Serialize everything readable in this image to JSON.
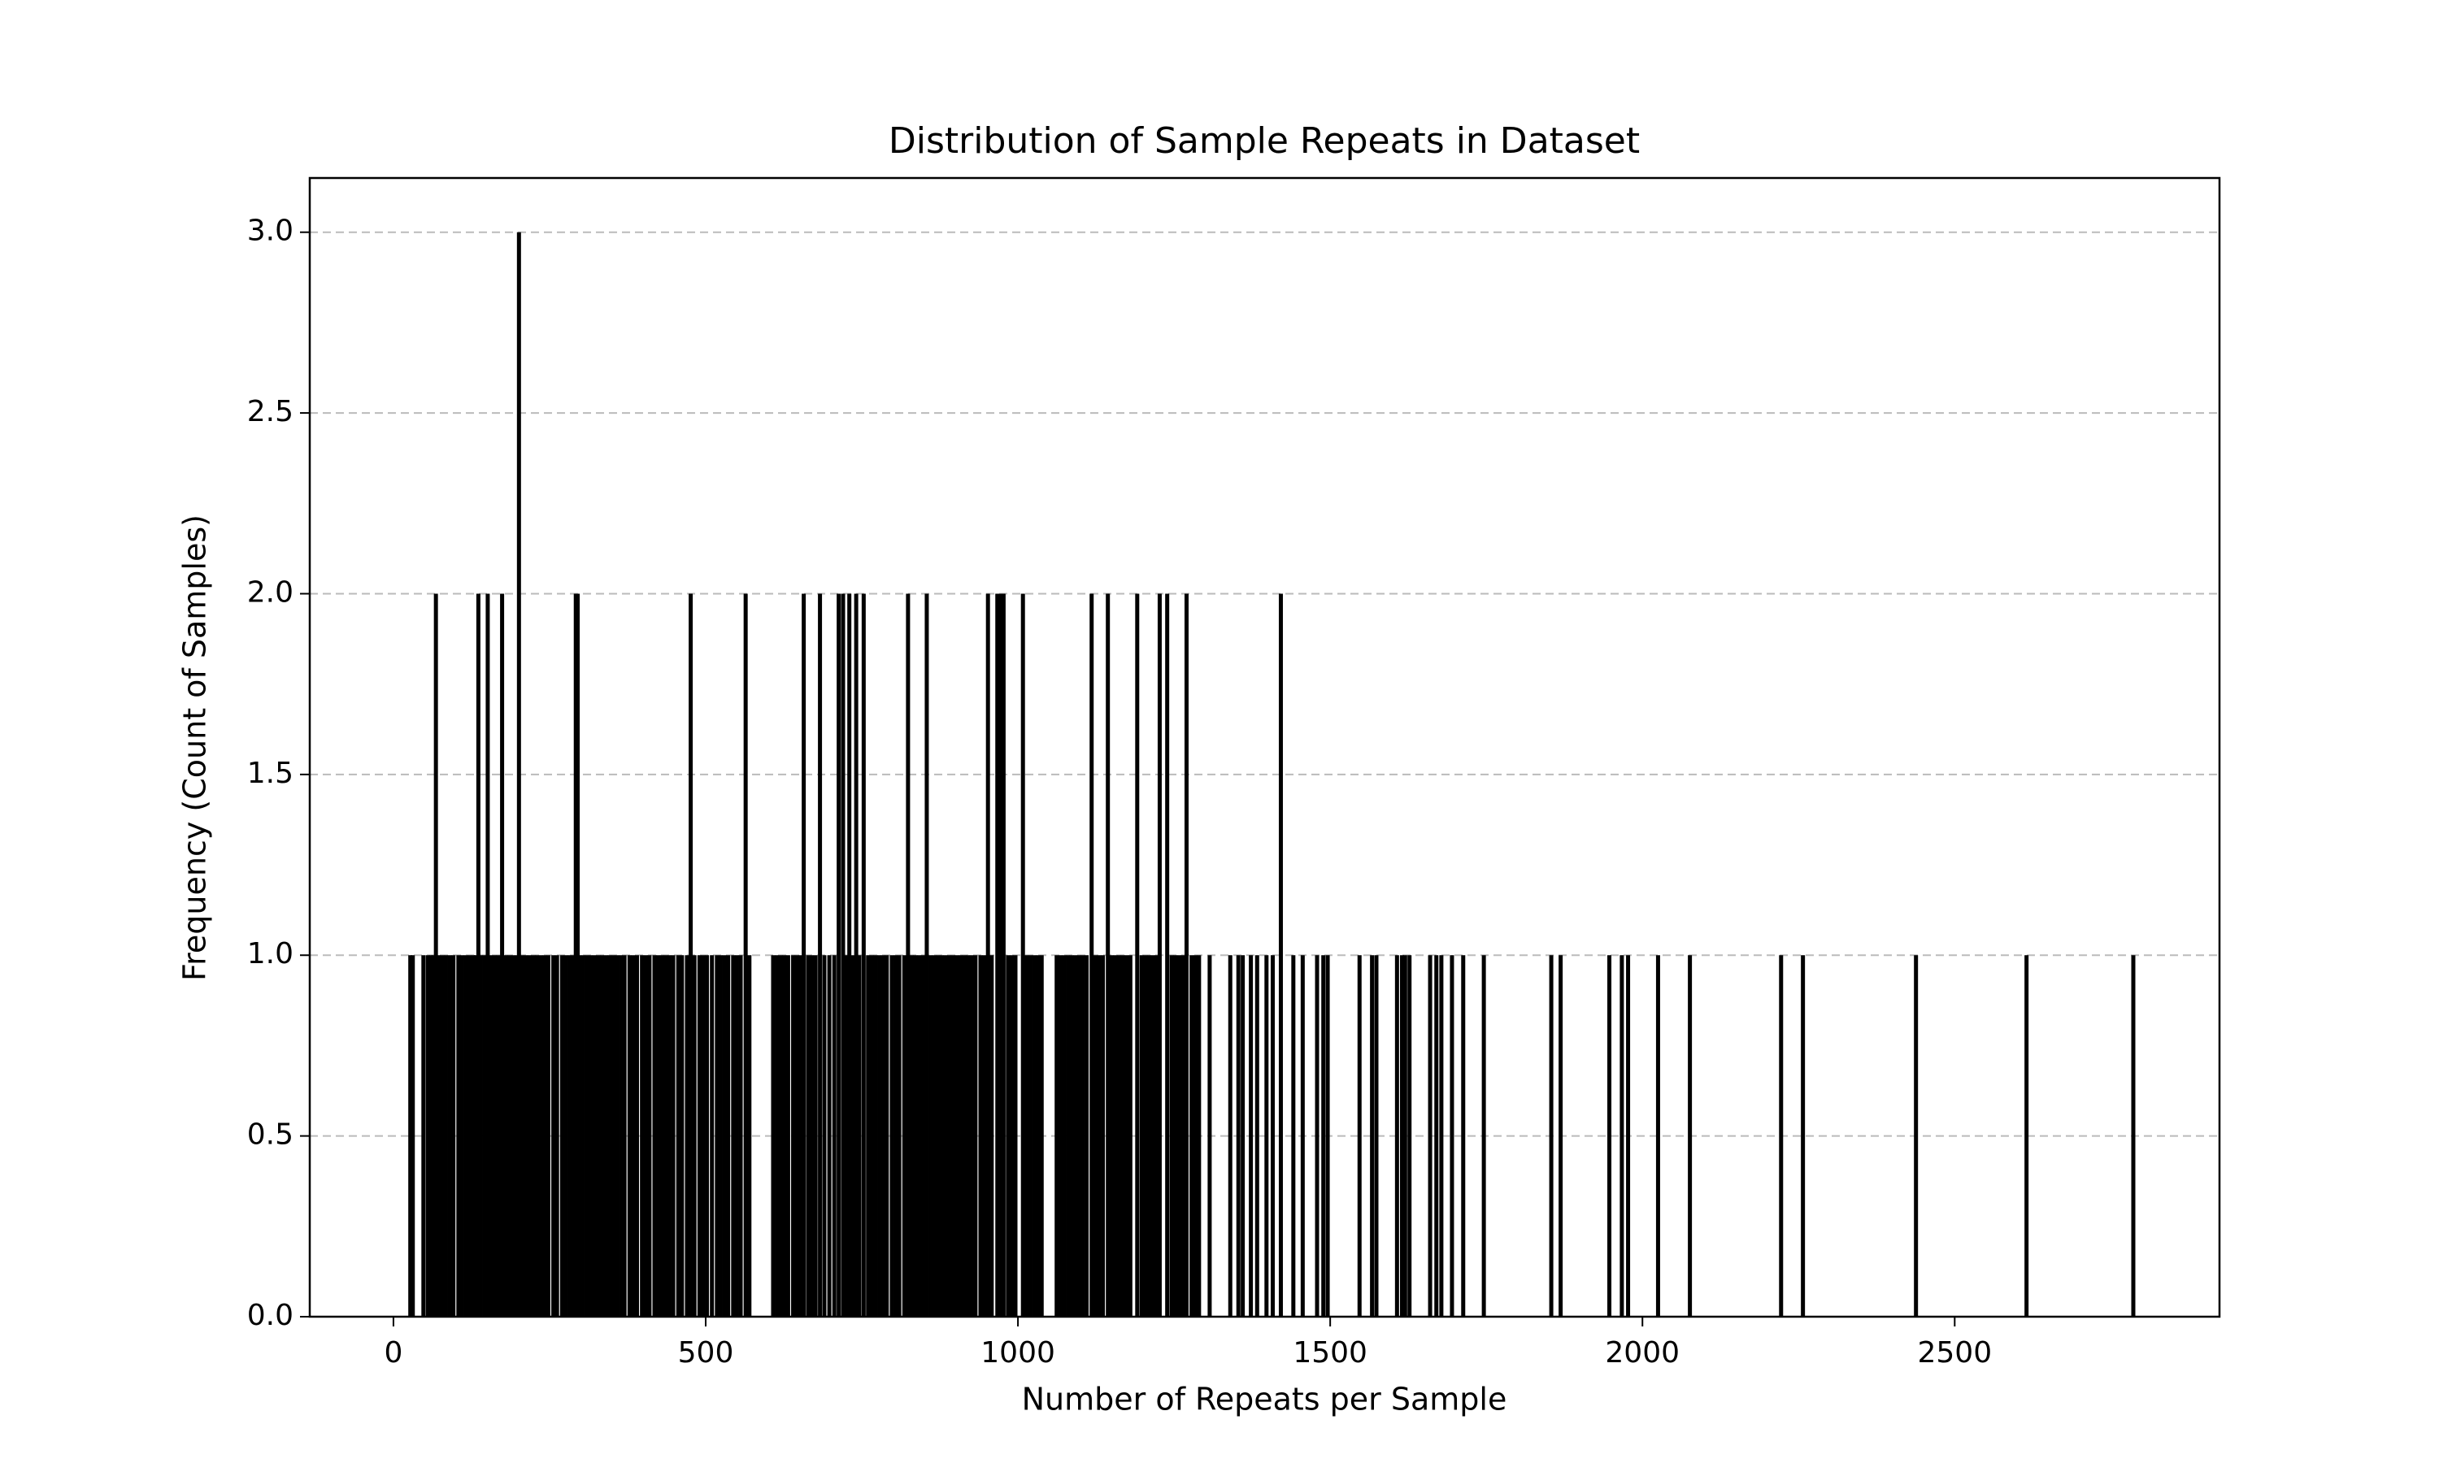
{
  "chart_data": {
    "type": "bar",
    "title": "Distribution of Sample Repeats in Dataset",
    "x_label": "Number of Repeats per Sample",
    "y_label": "Frequency (Count of Samples)",
    "color": "#000000",
    "grid": true,
    "xlim": [
      -134,
      2924
    ],
    "ylim": [
      0,
      3.15
    ],
    "xticks": [
      0,
      500,
      1000,
      1500,
      2000,
      2500
    ],
    "yticks": [
      {
        "value": 0,
        "label": "0.0"
      },
      0.5,
      {
        "value": 1,
        "label": "1.0"
      },
      1.5,
      {
        "value": 2,
        "label": "2.0"
      },
      2.5,
      {
        "value": 3,
        "label": "3.0"
      }
    ],
    "x": [
      27,
      31,
      48,
      55,
      60,
      64,
      72,
      78,
      84,
      90,
      96,
      104,
      110,
      116,
      122,
      128,
      132,
      140,
      146,
      156,
      162,
      168,
      180,
      186,
      192,
      198,
      206,
      212,
      218,
      224,
      230,
      236,
      242,
      248,
      256,
      262,
      270,
      276,
      282,
      288,
      298,
      304,
      310,
      316,
      322,
      328,
      334,
      340,
      346,
      352,
      358,
      364,
      370,
      378,
      384,
      390,
      398,
      404,
      410,
      418,
      424,
      430,
      436,
      442,
      448,
      456,
      462,
      470,
      482,
      490,
      496,
      502,
      510,
      518,
      524,
      530,
      536,
      544,
      550,
      556,
      570,
      608,
      614,
      620,
      626,
      632,
      640,
      646,
      652,
      664,
      670,
      676,
      690,
      698,
      706,
      726,
      736,
      746,
      760,
      766,
      772,
      778,
      784,
      790,
      798,
      804,
      810,
      818,
      830,
      836,
      842,
      848,
      860,
      866,
      872,
      878,
      884,
      890,
      896,
      902,
      908,
      914,
      920,
      926,
      932,
      940,
      946,
      958,
      984,
      990,
      996,
      1014,
      1020,
      1026,
      1032,
      1038,
      1062,
      1068,
      1074,
      1080,
      1086,
      1092,
      1098,
      1104,
      1110,
      1124,
      1130,
      1136,
      1150,
      1156,
      1162,
      1168,
      1174,
      1180,
      1198,
      1204,
      1210,
      1216,
      1222,
      1246,
      1252,
      1258,
      1264,
      1278,
      1284,
      1290,
      68,
      136,
      151,
      174,
      201,
      292,
      295,
      476,
      564,
      657,
      683,
      713,
      720,
      730,
      741,
      753,
      824,
      854,
      952,
      967,
      972,
      977,
      1008,
      1118,
      1144,
      1191,
      1227,
      1239,
      1270,
      1421,
      1307,
      1340,
      1353,
      1360,
      1373,
      1383,
      1398,
      1408,
      1441,
      1456,
      1479,
      1489,
      1496,
      1547,
      1567,
      1574,
      1607,
      1615,
      1620,
      1627,
      1660,
      1670,
      1678,
      1695,
      1713,
      1746,
      1854,
      1869,
      1947,
      1967,
      1977,
      2025,
      2076,
      2222,
      2257,
      2438,
      2615,
      2786
    ],
    "values": [
      1,
      1,
      1,
      1,
      1,
      1,
      1,
      1,
      1,
      1,
      1,
      1,
      1,
      1,
      1,
      1,
      1,
      1,
      1,
      1,
      1,
      1,
      1,
      1,
      1,
      1,
      1,
      1,
      1,
      1,
      1,
      1,
      1,
      1,
      1,
      1,
      1,
      1,
      1,
      1,
      1,
      1,
      1,
      1,
      1,
      1,
      1,
      1,
      1,
      1,
      1,
      1,
      1,
      1,
      1,
      1,
      1,
      1,
      1,
      1,
      1,
      1,
      1,
      1,
      1,
      1,
      1,
      1,
      1,
      1,
      1,
      1,
      1,
      1,
      1,
      1,
      1,
      1,
      1,
      1,
      1,
      1,
      1,
      1,
      1,
      1,
      1,
      1,
      1,
      1,
      1,
      1,
      1,
      1,
      1,
      1,
      1,
      1,
      1,
      1,
      1,
      1,
      1,
      1,
      1,
      1,
      1,
      1,
      1,
      1,
      1,
      1,
      1,
      1,
      1,
      1,
      1,
      1,
      1,
      1,
      1,
      1,
      1,
      1,
      1,
      1,
      1,
      1,
      1,
      1,
      1,
      1,
      1,
      1,
      1,
      1,
      1,
      1,
      1,
      1,
      1,
      1,
      1,
      1,
      1,
      1,
      1,
      1,
      1,
      1,
      1,
      1,
      1,
      1,
      1,
      1,
      1,
      1,
      1,
      1,
      1,
      1,
      1,
      1,
      1,
      1,
      2,
      2,
      2,
      2,
      3,
      2,
      2,
      2,
      2,
      2,
      2,
      2,
      2,
      2,
      2,
      2,
      2,
      2,
      2,
      2,
      2,
      2,
      2,
      2,
      2,
      2,
      2,
      2,
      2,
      2,
      1,
      1,
      1,
      1,
      1,
      1,
      1,
      1,
      1,
      1,
      1,
      1,
      1,
      1,
      1,
      1,
      1,
      1,
      1,
      1,
      1,
      1,
      1,
      1,
      1,
      1,
      1,
      1,
      1,
      1,
      1,
      1,
      1,
      1,
      1,
      1,
      1,
      1
    ]
  }
}
